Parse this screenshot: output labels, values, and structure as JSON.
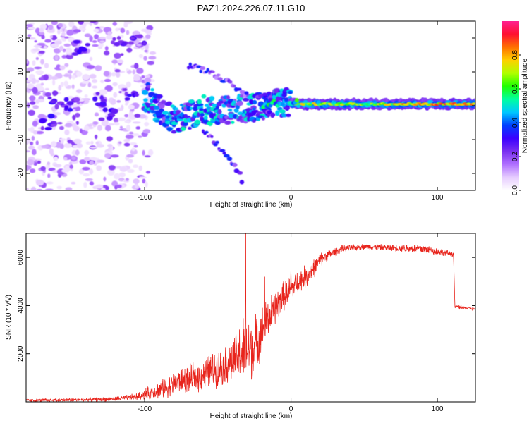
{
  "chart_data": [
    {
      "type": "heatmap",
      "title": "PAZ1.2024.226.07.11.G10",
      "xlabel": "Height of straight line (km)",
      "ylabel": "Frequency (Hz)",
      "xlim": [
        -181,
        126
      ],
      "ylim": [
        -25,
        25
      ],
      "xticks": [
        -100,
        0,
        100
      ],
      "yticks": [
        -20,
        -10,
        0,
        10,
        20
      ],
      "colorbar": {
        "label": "Normalized spectral amplitude",
        "range": [
          0,
          1
        ],
        "ticks": [
          0.0,
          0.2,
          0.4,
          0.6,
          0.8
        ],
        "colors": [
          "#ffffff",
          "#e6ccff",
          "#b070ff",
          "#7a2ff0",
          "#3b00ff",
          "#0040ff",
          "#00c8ff",
          "#00ffa0",
          "#20ff00",
          "#b0ff00",
          "#ffd000",
          "#ff7000",
          "#ff1030",
          "#ff2090"
        ]
      },
      "features": {
        "noise_region_x": [
          -181,
          -100
        ],
        "diving_branch": [
          [
            -100,
            3
          ],
          [
            -90,
            -1
          ],
          [
            -80,
            -4
          ],
          [
            -70,
            -3
          ],
          [
            -60,
            -1
          ],
          [
            -50,
            -2
          ],
          [
            -40,
            -1
          ],
          [
            -30,
            -1
          ],
          [
            -20,
            0
          ],
          [
            -10,
            1
          ],
          [
            0,
            1
          ]
        ],
        "steady_band_x": [
          0,
          126
        ],
        "steady_band_freq": 0.5,
        "upper_branch": [
          [
            -70,
            12
          ],
          [
            -55,
            10
          ],
          [
            -40,
            6
          ],
          [
            -30,
            3
          ]
        ],
        "lower_branch": [
          [
            -60,
            -7
          ],
          [
            -45,
            -14
          ],
          [
            -35,
            -20
          ],
          [
            -33,
            -24
          ]
        ]
      }
    },
    {
      "type": "line",
      "title": "",
      "xlabel": "Height of straight line (km)",
      "ylabel": "SNR (10 * v/v)",
      "xlim": [
        -181,
        126
      ],
      "ylim": [
        0,
        7000
      ],
      "xticks": [
        -100,
        0,
        100
      ],
      "yticks": [
        2000,
        4000,
        6000
      ],
      "color": "#e8241c",
      "envelope": [
        [
          -181,
          50,
          60
        ],
        [
          -150,
          80,
          60
        ],
        [
          -120,
          120,
          80
        ],
        [
          -105,
          220,
          120
        ],
        [
          -95,
          400,
          250
        ],
        [
          -85,
          600,
          350
        ],
        [
          -75,
          900,
          450
        ],
        [
          -65,
          1000,
          500
        ],
        [
          -55,
          1300,
          600
        ],
        [
          -45,
          1500,
          650
        ],
        [
          -38,
          1800,
          800
        ],
        [
          -33,
          2100,
          1200
        ],
        [
          -28,
          2200,
          1100
        ],
        [
          -24,
          2400,
          1000
        ],
        [
          -20,
          3000,
          800
        ],
        [
          -15,
          3500,
          700
        ],
        [
          -10,
          4000,
          600
        ],
        [
          -5,
          4400,
          500
        ],
        [
          0,
          4700,
          450
        ],
        [
          5,
          5000,
          400
        ],
        [
          10,
          5200,
          400
        ],
        [
          15,
          5500,
          350
        ],
        [
          20,
          5900,
          250
        ],
        [
          25,
          6100,
          180
        ],
        [
          35,
          6350,
          120
        ],
        [
          50,
          6450,
          100
        ],
        [
          70,
          6400,
          110
        ],
        [
          90,
          6350,
          180
        ],
        [
          100,
          6250,
          130
        ],
        [
          110,
          6150,
          100
        ],
        [
          111,
          6150,
          100
        ],
        [
          112,
          3950,
          60
        ],
        [
          126,
          3850,
          50
        ]
      ],
      "spikes": [
        [
          -31,
          7000
        ],
        [
          -18,
          5200
        ],
        [
          0,
          5600
        ]
      ]
    }
  ]
}
